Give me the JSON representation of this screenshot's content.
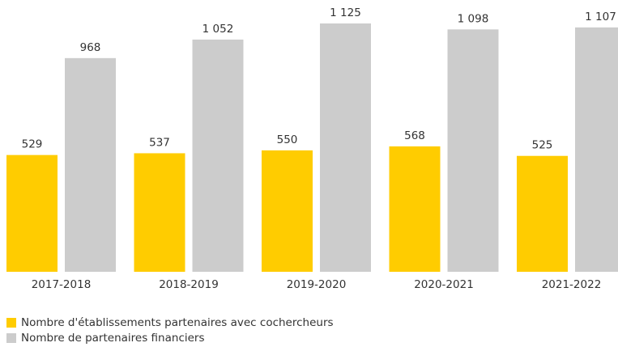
{
  "chart_data": {
    "type": "bar",
    "categories": [
      "2017-2018",
      "2018-2019",
      "2019-2020",
      "2020-2021",
      "2021-2022"
    ],
    "series": [
      {
        "name": "Nombre d'établissements partenaires avec cochercheurs",
        "color": "#ffcc00",
        "values": [
          529,
          537,
          550,
          568,
          525
        ]
      },
      {
        "name": "Nombre de partenaires financiers",
        "color": "#cccccc",
        "values": [
          968,
          1052,
          1125,
          1098,
          1107
        ],
        "value_labels": [
          "968",
          "1 052",
          "1 125",
          "1 098",
          "1 107"
        ]
      }
    ]
  }
}
